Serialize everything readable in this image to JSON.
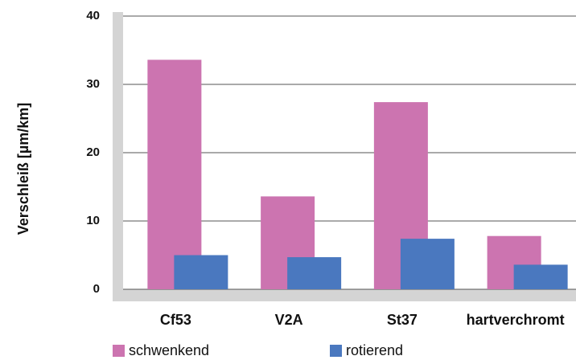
{
  "chart_data": {
    "type": "bar",
    "y_label": "Verschleiß [µm/km]",
    "categories": [
      "Cf53",
      "V2A",
      "St37",
      "hartverchromt"
    ],
    "series": [
      {
        "name": "schwenkend",
        "color": "#cc74b0",
        "values": [
          33.6,
          13.6,
          27.4,
          7.8
        ]
      },
      {
        "name": "rotierend",
        "color": "#4a78bf",
        "values": [
          5.0,
          4.7,
          7.4,
          3.6
        ]
      }
    ],
    "ylim": [
      0,
      40
    ],
    "yticks": [
      0,
      10,
      20,
      30,
      40
    ],
    "grid": true
  }
}
